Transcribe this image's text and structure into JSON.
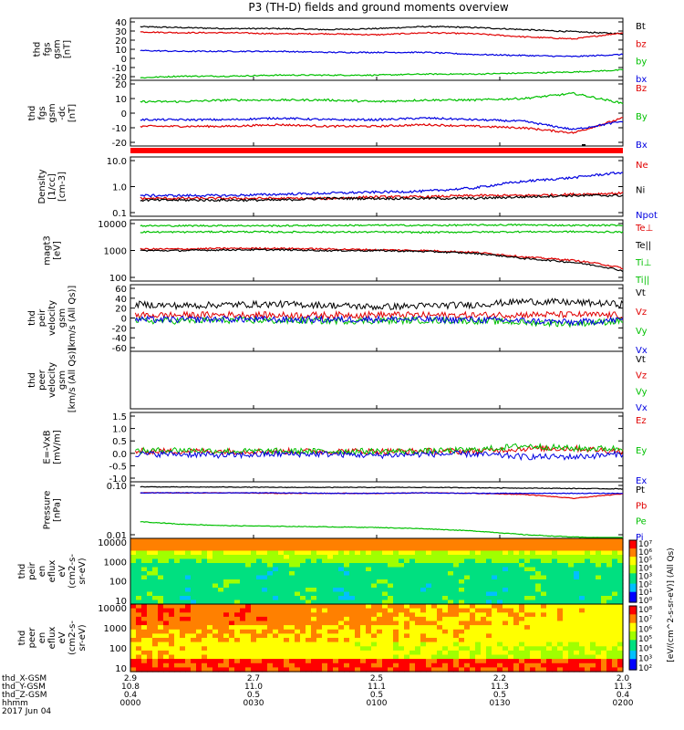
{
  "title": "P3 (TH-D) fields and ground moments overview",
  "panels": [
    {
      "id": "fgs-gsm",
      "ylabel": [
        "thd",
        "fgs",
        "gsm",
        "[nT]"
      ],
      "ticks": [
        "40",
        "30",
        "20",
        "10",
        "0",
        "-10",
        "-20"
      ],
      "legend": [
        {
          "label": "Bt",
          "color": "#000000"
        },
        {
          "label": "bz",
          "color": "#e00000"
        },
        {
          "label": "by",
          "color": "#00c000"
        },
        {
          "label": "bx",
          "color": "#0000e0"
        }
      ]
    },
    {
      "id": "fgs-gsm-dc",
      "ylabel": [
        "thd",
        "fgs",
        "gsm",
        "-dc",
        "[nT]"
      ],
      "ticks": [
        "20",
        "10",
        "0",
        "-10",
        "-20"
      ],
      "legend": [
        {
          "label": "Bz",
          "color": "#e00000"
        },
        {
          "label": "By",
          "color": "#00c000"
        },
        {
          "label": "Bx",
          "color": "#0000e0"
        }
      ]
    },
    {
      "id": "density",
      "ylabel": [
        "Density",
        "[1/cc]",
        "[cm-3]"
      ],
      "ticks": [
        "10.0",
        "1.0",
        "0.1"
      ],
      "legend": [
        {
          "label": "Ne",
          "color": "#e00000"
        },
        {
          "label": "Ni",
          "color": "#000000"
        },
        {
          "label": "Npot",
          "color": "#0000e0"
        }
      ]
    },
    {
      "id": "temperature",
      "ylabel": [
        "magt3",
        "[eV]"
      ],
      "ticks": [
        "10000",
        "1000",
        "100"
      ],
      "legend": [
        {
          "label": "Te⊥",
          "color": "#e00000"
        },
        {
          "label": "Te||",
          "color": "#000000"
        },
        {
          "label": "Ti⊥",
          "color": "#00c000"
        },
        {
          "label": "Ti||",
          "color": "#00c000"
        }
      ]
    },
    {
      "id": "ion-velocity",
      "ylabel": [
        "thd",
        "peir",
        "velocity",
        "gsm",
        "[km/s (All Qs)]"
      ],
      "ticks": [
        "60",
        "40",
        "20",
        "0",
        "-20",
        "-40",
        "-60"
      ],
      "legend": [
        {
          "label": "Vt",
          "color": "#000000"
        },
        {
          "label": "Vz",
          "color": "#e00000"
        },
        {
          "label": "Vy",
          "color": "#00c000"
        },
        {
          "label": "Vx",
          "color": "#0000e0"
        }
      ]
    },
    {
      "id": "electron-velocity",
      "ylabel": [
        "thd",
        "peer",
        "velocity",
        "gsm",
        "[km/s (All Qs)]"
      ],
      "ticks": [],
      "legend": [
        {
          "label": "Vt",
          "color": "#000000"
        },
        {
          "label": "Vz",
          "color": "#e00000"
        },
        {
          "label": "Vy",
          "color": "#00c000"
        },
        {
          "label": "Vx",
          "color": "#0000e0"
        }
      ]
    },
    {
      "id": "e-field",
      "ylabel": [
        "E=-VxB",
        "[mV/m]"
      ],
      "ticks": [
        "1.5",
        "1.0",
        "0.5",
        "0.0",
        "-0.5",
        "-1.0"
      ],
      "legend": [
        {
          "label": "Ez",
          "color": "#e00000"
        },
        {
          "label": "Ey",
          "color": "#00c000"
        },
        {
          "label": "Ex",
          "color": "#0000e0"
        }
      ]
    },
    {
      "id": "pressure",
      "ylabel": [
        "Pressure",
        "[nPa]"
      ],
      "ticks": [
        "0.10",
        "0.01"
      ],
      "legend": [
        {
          "label": "Pt",
          "color": "#000000"
        },
        {
          "label": "Pb",
          "color": "#e00000"
        },
        {
          "label": "Pe",
          "color": "#00c000"
        },
        {
          "label": "Pi",
          "color": "#0000e0"
        }
      ]
    },
    {
      "id": "ion-spectrogram",
      "ylabel": [
        "thd",
        "peir",
        "en",
        "eflux",
        "eV",
        "(cm2-s-",
        "sr-eV)"
      ],
      "ticks": [
        "10000",
        "1000",
        "100",
        "10"
      ],
      "legend": []
    },
    {
      "id": "electron-spectrogram",
      "ylabel": [
        "thd",
        "peer",
        "en",
        "eflux",
        "eV",
        "(cm2-s-",
        "sr-eV)"
      ],
      "ticks": [
        "10000",
        "1000",
        "100",
        "10"
      ],
      "legend": []
    }
  ],
  "colorbars": [
    {
      "ticks": [
        "10⁷",
        "10⁶",
        "10⁵",
        "10⁴",
        "10³",
        "10²",
        "10¹",
        "10⁰"
      ]
    },
    {
      "ticks": [
        "10⁸",
        "10⁷",
        "10⁶",
        "10⁵",
        "10⁴",
        "10³",
        "10²"
      ]
    }
  ],
  "colorbar_label": "[eV/(cm^2-s-sr-eV)] (All Qs)",
  "xaxis": {
    "row_labels": [
      "thd_X-GSM",
      "thd_Y-GSM",
      "thd_Z-GSM",
      "hhmm",
      "2017 Jun 04"
    ],
    "columns": [
      [
        "2.9",
        "10.8",
        "0.4",
        "0000"
      ],
      [
        "2.7",
        "11.0",
        "0.5",
        "0030"
      ],
      [
        "2.5",
        "11.1",
        "0.5",
        "0100"
      ],
      [
        "2.2",
        "11.3",
        "0.5",
        "0130"
      ],
      [
        "2.0",
        "11.3",
        "0.4",
        "0200"
      ]
    ]
  },
  "chart_data": {
    "type": "line",
    "title": "P3 (TH-D) fields and ground moments overview",
    "x_ticks": [
      "0000",
      "0030",
      "0100",
      "0130",
      "0200"
    ],
    "date": "2017 Jun 04",
    "panels": [
      {
        "name": "fgs gsm [nT]",
        "ylim": [
          -20,
          40
        ],
        "series": [
          {
            "name": "Bt",
            "values": [
              32,
              31,
              30,
              30,
              29,
              30,
              32,
              31,
              29,
              27,
              25
            ]
          },
          {
            "name": "bz",
            "values": [
              27,
              26,
              26,
              25,
              25,
              24,
              26,
              25,
              22,
              20,
              26
            ]
          },
          {
            "name": "by",
            "values": [
              -18,
              -16,
              -16,
              -15,
              -15,
              -15,
              -14,
              -14,
              -13,
              -12,
              -10
            ]
          },
          {
            "name": "bx",
            "values": [
              9,
              8,
              8,
              8,
              7,
              7,
              7,
              5,
              4,
              3,
              5
            ]
          }
        ]
      },
      {
        "name": "fgs gsm-dc [nT]",
        "ylim": [
          -20,
          20
        ],
        "series": [
          {
            "name": "Bz",
            "values": [
              -8,
              -8,
              -8,
              -7,
              -8,
              -8,
              -7,
              -8,
              -9,
              -12,
              -3
            ]
          },
          {
            "name": "By",
            "values": [
              7,
              7,
              8,
              8,
              8,
              7,
              8,
              8,
              9,
              12,
              6
            ]
          },
          {
            "name": "Bx",
            "values": [
              -4,
              -4,
              -4,
              -3,
              -4,
              -4,
              -3,
              -4,
              -5,
              -10,
              -5
            ]
          }
        ]
      },
      {
        "name": "Density [cm-3]",
        "ylim": [
          0.1,
          10
        ],
        "log": true,
        "series": [
          {
            "name": "Ne",
            "values": [
              0.4,
              0.4,
              0.4,
              0.4,
              0.4,
              0.45,
              0.45,
              0.5,
              0.5,
              0.55,
              0.6
            ]
          },
          {
            "name": "Ni",
            "values": [
              0.35,
              0.35,
              0.35,
              0.35,
              0.4,
              0.4,
              0.4,
              0.4,
              0.45,
              0.5,
              0.5
            ]
          },
          {
            "name": "Npot",
            "values": [
              0.5,
              0.5,
              0.5,
              0.55,
              0.6,
              0.65,
              0.7,
              0.9,
              1.5,
              2.0,
              3.0
            ]
          }
        ]
      },
      {
        "name": "magt3 [eV]",
        "ylim": [
          50,
          10000
        ],
        "log": true,
        "series": [
          {
            "name": "Te⊥",
            "values": [
              800,
              800,
              850,
              850,
              800,
              750,
              700,
              600,
              400,
              300,
              150
            ]
          },
          {
            "name": "Te||",
            "values": [
              700,
              700,
              750,
              750,
              700,
              700,
              650,
              550,
              350,
              250,
              120
            ]
          },
          {
            "name": "Ti⊥",
            "values": [
              6000,
              6000,
              6100,
              6000,
              6200,
              6300,
              6200,
              6400,
              6500,
              6200,
              6300
            ]
          },
          {
            "name": "Ti||",
            "values": [
              3500,
              3500,
              3600,
              3500,
              3500,
              3500,
              3400,
              3500,
              3600,
              3600,
              3500
            ]
          }
        ]
      },
      {
        "name": "peir velocity gsm [km/s]",
        "ylim": [
          -60,
          60
        ],
        "series": [
          {
            "name": "Vt",
            "values": [
              25,
              22,
              24,
              25,
              23,
              20,
              22,
              24,
              30,
              28,
              25
            ]
          },
          {
            "name": "Vz",
            "values": [
              5,
              5,
              6,
              5,
              5,
              6,
              5,
              5,
              6,
              6,
              5
            ]
          },
          {
            "name": "Vy",
            "values": [
              -5,
              -5,
              -4,
              -5,
              -5,
              -5,
              -4,
              -5,
              -8,
              -10,
              -5
            ]
          },
          {
            "name": "Vx",
            "values": [
              -3,
              -3,
              -2,
              -3,
              -3,
              -2,
              -3,
              -3,
              -5,
              -8,
              -3
            ]
          }
        ]
      },
      {
        "name": "E=-VxB [mV/m]",
        "ylim": [
          -1,
          1.5
        ],
        "series": [
          {
            "name": "Ez",
            "values": [
              0.1,
              0.1,
              0.1,
              0.1,
              0.1,
              0.1,
              0.1,
              0.1,
              0.2,
              0.2,
              0.1
            ]
          },
          {
            "name": "Ey",
            "values": [
              0.1,
              0.15,
              0.1,
              0.1,
              0.1,
              0.1,
              0.1,
              0.15,
              0.3,
              0.2,
              0.2
            ]
          },
          {
            "name": "Ex",
            "values": [
              0,
              0,
              -0.05,
              0,
              0,
              -0.05,
              0,
              0,
              -0.1,
              -0.1,
              0
            ]
          }
        ]
      },
      {
        "name": "Pressure [nPa]",
        "ylim": [
          0.01,
          0.6
        ],
        "log": true,
        "series": [
          {
            "name": "Pt",
            "values": [
              0.42,
              0.41,
              0.41,
              0.4,
              0.4,
              0.4,
              0.4,
              0.39,
              0.38,
              0.37,
              0.36
            ]
          },
          {
            "name": "Pb",
            "values": [
              0.27,
              0.27,
              0.27,
              0.26,
              0.26,
              0.26,
              0.27,
              0.26,
              0.24,
              0.18,
              0.25
            ]
          },
          {
            "name": "Pe",
            "values": [
              0.035,
              0.028,
              0.025,
              0.024,
              0.023,
              0.022,
              0.02,
              0.017,
              0.013,
              0.011,
              0.01
            ]
          },
          {
            "name": "Pi",
            "values": [
              0.27,
              0.27,
              0.27,
              0.27,
              0.26,
              0.26,
              0.27,
              0.26,
              0.26,
              0.26,
              0.26
            ]
          }
        ]
      }
    ]
  }
}
